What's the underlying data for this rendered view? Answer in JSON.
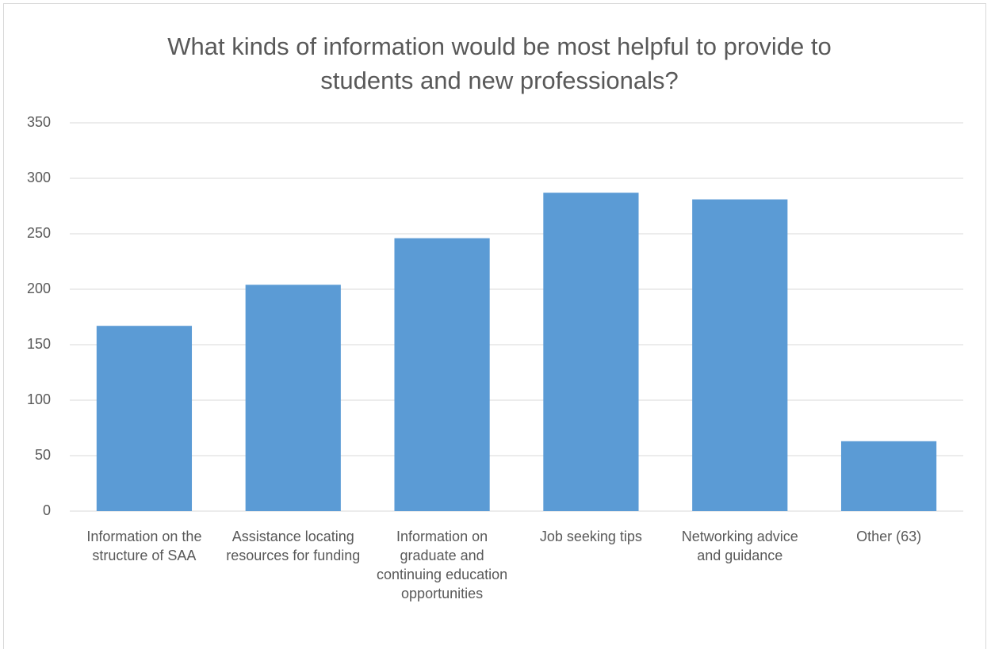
{
  "chart_data": {
    "type": "bar",
    "title": "What kinds of information would be most helpful to provide to students and new professionals?",
    "categories": [
      "Information on the structure of SAA",
      "Assistance locating resources for funding",
      "Information on graduate and continuing education opportunities",
      "Job seeking tips",
      "Networking advice and guidance",
      "Other (63)"
    ],
    "values": [
      167,
      204,
      246,
      287,
      281,
      63
    ],
    "color": "#5b9bd5",
    "ylim": [
      0,
      350
    ],
    "yticks": [
      0,
      50,
      100,
      150,
      200,
      250,
      300,
      350
    ],
    "grid": true
  }
}
